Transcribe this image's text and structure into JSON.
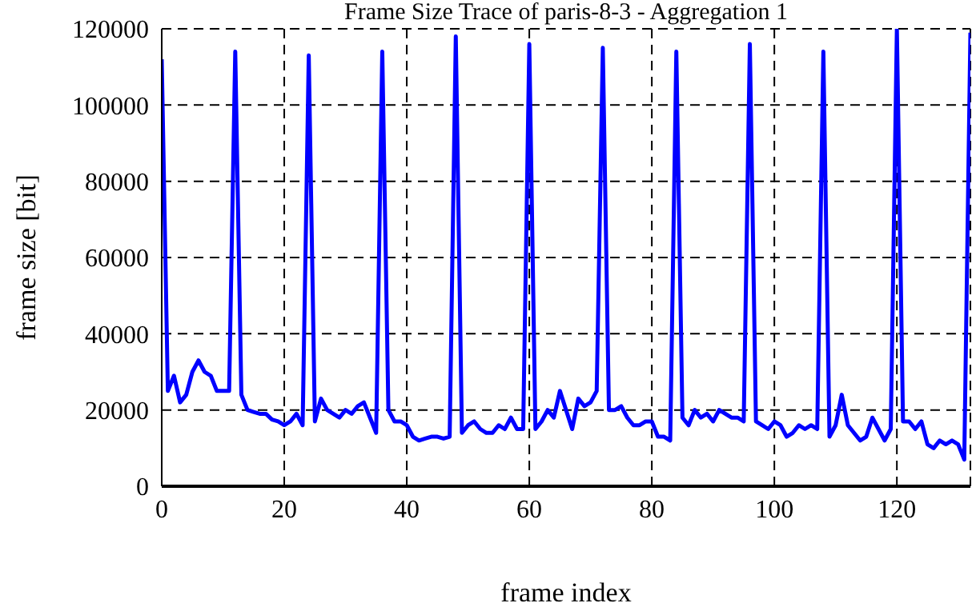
{
  "chart_data": {
    "type": "line",
    "title": "Frame Size Trace of paris-8-3 - Aggregation 1",
    "xlabel": "frame index",
    "ylabel": "frame size [bit]",
    "x": [
      0,
      1,
      2,
      3,
      4,
      5,
      6,
      7,
      8,
      9,
      10,
      11,
      12,
      13,
      14,
      15,
      16,
      17,
      18,
      19,
      20,
      21,
      22,
      23,
      24,
      25,
      26,
      27,
      28,
      29,
      30,
      31,
      32,
      33,
      34,
      35,
      36,
      37,
      38,
      39,
      40,
      41,
      42,
      43,
      44,
      45,
      46,
      47,
      48,
      49,
      50,
      51,
      52,
      53,
      54,
      55,
      56,
      57,
      58,
      59,
      60,
      61,
      62,
      63,
      64,
      65,
      66,
      67,
      68,
      69,
      70,
      71,
      72,
      73,
      74,
      75,
      76,
      77,
      78,
      79,
      80,
      81,
      82,
      83,
      84,
      85,
      86,
      87,
      88,
      89,
      90,
      91,
      92,
      93,
      94,
      95,
      96,
      97,
      98,
      99,
      100,
      101,
      102,
      103,
      104,
      105,
      106,
      107,
      108,
      109,
      110,
      111,
      112,
      113,
      114,
      115,
      116,
      117,
      118,
      119,
      120,
      121,
      122,
      123,
      124,
      125,
      126,
      127,
      128,
      129,
      130,
      131,
      132
    ],
    "series": [
      {
        "color": "#0000ff",
        "values": [
          112000,
          25000,
          29000,
          22000,
          24000,
          30000,
          33000,
          30000,
          29000,
          25000,
          25000,
          25000,
          114000,
          24000,
          20000,
          19500,
          19000,
          19000,
          17500,
          17000,
          16000,
          17000,
          19000,
          16000,
          113000,
          17000,
          23000,
          20000,
          19000,
          18000,
          20000,
          19000,
          21000,
          22000,
          18000,
          14000,
          114000,
          20000,
          17000,
          17000,
          16000,
          13000,
          12000,
          12500,
          13000,
          13000,
          12500,
          13000,
          118000,
          14000,
          16000,
          17000,
          15000,
          14000,
          14000,
          16000,
          15000,
          18000,
          15000,
          15000,
          116000,
          15000,
          17000,
          20000,
          18000,
          25000,
          20000,
          15000,
          23000,
          21000,
          22000,
          25000,
          115000,
          20000,
          20000,
          21000,
          18000,
          16000,
          16000,
          17000,
          17000,
          13000,
          13000,
          12000,
          114000,
          18000,
          16000,
          20000,
          18000,
          19000,
          17000,
          20000,
          19000,
          18000,
          18000,
          17000,
          116000,
          17000,
          16000,
          15000,
          17000,
          16000,
          13000,
          14000,
          16000,
          15000,
          16000,
          15000,
          114000,
          13000,
          16000,
          24000,
          16000,
          14000,
          12000,
          13000,
          18000,
          15000,
          12000,
          15000,
          120000,
          17000,
          17000,
          15000,
          17000,
          11000,
          10000,
          12000,
          11000,
          12000,
          11000,
          7000,
          119000
        ]
      }
    ],
    "xlim": [
      0,
      132
    ],
    "xticks": [
      0,
      20,
      40,
      60,
      80,
      100,
      120
    ],
    "ylim": [
      0,
      120000
    ],
    "yticks": [
      0,
      20000,
      40000,
      60000,
      80000,
      100000,
      120000
    ],
    "grid": true,
    "marker": "none",
    "line_style": "solid"
  }
}
